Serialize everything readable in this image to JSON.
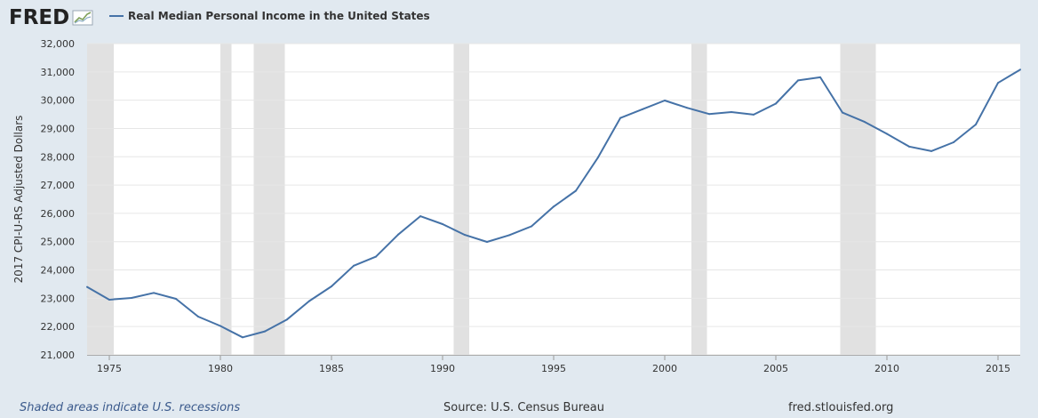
{
  "header": {
    "logo_text": "FRED",
    "logo_icon": "fred-chart-icon"
  },
  "colors": {
    "line": "#4572a7",
    "recession": "#e1e1e1",
    "grid": "#e6e6e6",
    "background": "#e1e9f0",
    "plot_bg": "#ffffff"
  },
  "footer": {
    "recession_note": "Shaded areas indicate U.S. recessions",
    "source": "Source: U.S. Census Bureau",
    "site": "fred.stlouisfed.org"
  },
  "chart_data": {
    "type": "line",
    "title": "",
    "xlabel": "",
    "ylabel": "2017 CPI-U-RS Adjusted Dollars",
    "xlim": [
      1974,
      2016
    ],
    "ylim": [
      21000,
      32000
    ],
    "grid": true,
    "legend_position": "top-left",
    "x_ticks": [
      1975,
      1980,
      1985,
      1990,
      1995,
      2000,
      2005,
      2010,
      2015
    ],
    "y_ticks": [
      21000,
      22000,
      23000,
      24000,
      25000,
      26000,
      27000,
      28000,
      29000,
      30000,
      31000,
      32000
    ],
    "y_tick_labels": [
      "21,000",
      "22,000",
      "23,000",
      "24,000",
      "25,000",
      "26,000",
      "27,000",
      "28,000",
      "29,000",
      "30,000",
      "31,000",
      "32,000"
    ],
    "recessions": [
      [
        1974,
        1975.2
      ],
      [
        1980.0,
        1980.5
      ],
      [
        1981.5,
        1982.9
      ],
      [
        1990.5,
        1991.2
      ],
      [
        2001.2,
        2001.9
      ],
      [
        2007.9,
        2009.5
      ]
    ],
    "series": [
      {
        "name": "Real Median Personal Income in the United States",
        "x": [
          1974,
          1975,
          1976,
          1977,
          1978,
          1979,
          1980,
          1981,
          1982,
          1983,
          1984,
          1985,
          1986,
          1987,
          1988,
          1989,
          1990,
          1991,
          1992,
          1993,
          1994,
          1995,
          1996,
          1997,
          1998,
          1999,
          2000,
          2001,
          2002,
          2003,
          2004,
          2005,
          2006,
          2007,
          2008,
          2009,
          2010,
          2011,
          2012,
          2013,
          2014,
          2015,
          2016
        ],
        "values": [
          23400,
          22950,
          23010,
          23190,
          22980,
          22350,
          22020,
          21620,
          21830,
          22250,
          22900,
          23420,
          24150,
          24470,
          25250,
          25900,
          25620,
          25240,
          24990,
          25230,
          25540,
          26240,
          26800,
          27980,
          29370,
          29680,
          29990,
          29730,
          29510,
          29580,
          29490,
          29880,
          30700,
          30810,
          29560,
          29230,
          28810,
          28360,
          28200,
          28510,
          29140,
          30610,
          31080
        ]
      }
    ]
  }
}
